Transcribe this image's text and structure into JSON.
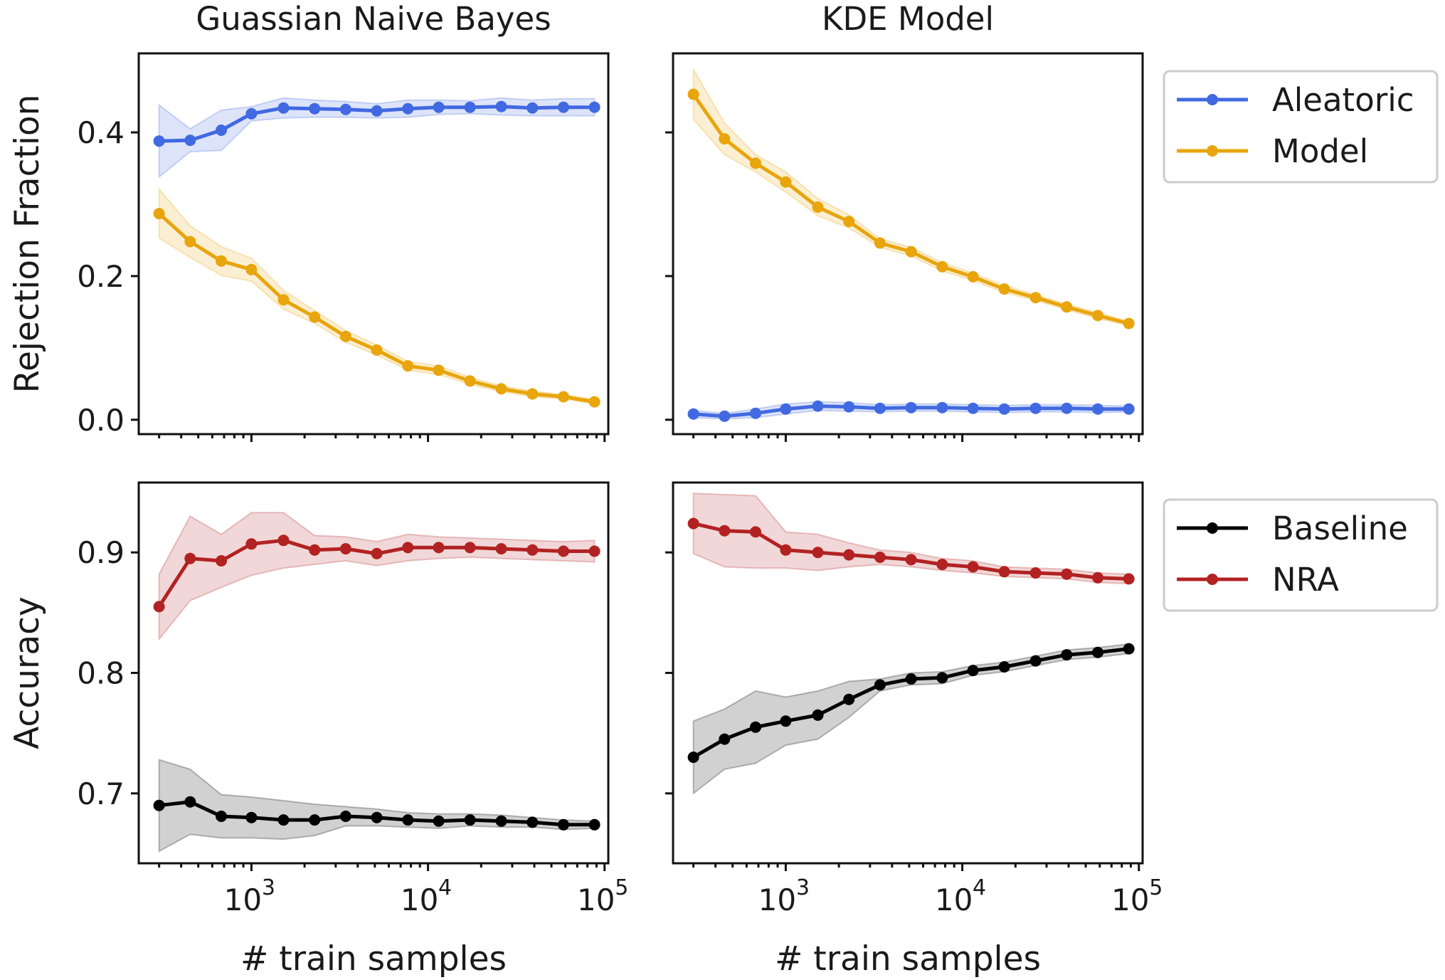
{
  "chart_data": [
    {
      "type": "line",
      "panel": "top-left",
      "title": "Guassian Naive Bayes",
      "xlabel": "",
      "ylabel": "Rejection Fraction",
      "xscale": "log",
      "xlim": [
        230,
        105000
      ],
      "ylim": [
        -0.02,
        0.51
      ],
      "yticks": [
        0.0,
        0.2,
        0.4
      ],
      "ytick_labels": [
        "0.0",
        "0.2",
        "0.4"
      ],
      "x": [
        300,
        450,
        675,
        1000,
        1520,
        2280,
        3420,
        5130,
        7690,
        11500,
        17300,
        26000,
        39000,
        58500,
        87700
      ],
      "series": [
        {
          "name": "Aleatoric",
          "color": "#4169e1",
          "values": [
            0.388,
            0.389,
            0.403,
            0.426,
            0.434,
            0.433,
            0.432,
            0.43,
            0.433,
            0.435,
            0.435,
            0.436,
            0.434,
            0.435,
            0.435
          ],
          "band": [
            0.05,
            0.016,
            0.028,
            0.01,
            0.014,
            0.012,
            0.011,
            0.01,
            0.012,
            0.01,
            0.009,
            0.012,
            0.011,
            0.012,
            0.012
          ]
        },
        {
          "name": "Model",
          "color": "#e8a50c",
          "values": [
            0.287,
            0.248,
            0.221,
            0.209,
            0.167,
            0.143,
            0.116,
            0.097,
            0.075,
            0.069,
            0.054,
            0.043,
            0.036,
            0.032,
            0.025
          ],
          "band": [
            0.034,
            0.022,
            0.02,
            0.016,
            0.013,
            0.009,
            0.008,
            0.007,
            0.006,
            0.006,
            0.005,
            0.004,
            0.004,
            0.003,
            0.003
          ]
        }
      ]
    },
    {
      "type": "line",
      "panel": "top-right",
      "title": "KDE Model",
      "xlabel": "",
      "ylabel": "",
      "xscale": "log",
      "xlim": [
        230,
        105000
      ],
      "ylim": [
        -0.02,
        0.51
      ],
      "yticks": [
        0.0,
        0.2,
        0.4
      ],
      "x": [
        300,
        450,
        675,
        1000,
        1520,
        2280,
        3420,
        5130,
        7690,
        11500,
        17300,
        26000,
        39000,
        58500,
        87700
      ],
      "series": [
        {
          "name": "Aleatoric",
          "color": "#4169e1",
          "values": [
            0.008,
            0.005,
            0.009,
            0.015,
            0.019,
            0.018,
            0.016,
            0.017,
            0.017,
            0.016,
            0.015,
            0.016,
            0.016,
            0.015,
            0.015
          ],
          "band": [
            0.005,
            0.004,
            0.006,
            0.007,
            0.006,
            0.006,
            0.005,
            0.005,
            0.005,
            0.005,
            0.005,
            0.005,
            0.005,
            0.005,
            0.004
          ]
        },
        {
          "name": "Model",
          "color": "#e8a50c",
          "values": [
            0.453,
            0.391,
            0.357,
            0.331,
            0.296,
            0.276,
            0.246,
            0.234,
            0.213,
            0.199,
            0.182,
            0.17,
            0.157,
            0.145,
            0.134
          ],
          "band": [
            0.035,
            0.022,
            0.012,
            0.014,
            0.012,
            0.009,
            0.006,
            0.006,
            0.006,
            0.005,
            0.005,
            0.004,
            0.004,
            0.004,
            0.003
          ]
        }
      ]
    },
    {
      "type": "line",
      "panel": "bottom-left",
      "title": "",
      "xlabel": "# train samples",
      "ylabel": "Accuracy",
      "xscale": "log",
      "xlim": [
        230,
        105000
      ],
      "ylim": [
        0.642,
        0.958
      ],
      "yticks": [
        0.7,
        0.8,
        0.9
      ],
      "ytick_labels": [
        "0.7",
        "0.8",
        "0.9"
      ],
      "xticks": [
        1000,
        10000,
        100000
      ],
      "xtick_labels": [
        "10",
        "10",
        "10"
      ],
      "xtick_exponents": [
        "3",
        "4",
        "5"
      ],
      "x": [
        300,
        450,
        675,
        1000,
        1520,
        2280,
        3420,
        5130,
        7690,
        11500,
        17300,
        26000,
        39000,
        58500,
        87700
      ],
      "series": [
        {
          "name": "Baseline",
          "color": "#000000",
          "values": [
            0.69,
            0.693,
            0.681,
            0.68,
            0.678,
            0.678,
            0.681,
            0.68,
            0.678,
            0.677,
            0.678,
            0.677,
            0.676,
            0.674,
            0.674
          ],
          "band": [
            0.038,
            0.027,
            0.018,
            0.017,
            0.016,
            0.013,
            0.008,
            0.007,
            0.006,
            0.006,
            0.005,
            0.005,
            0.004,
            0.004,
            0.003
          ]
        },
        {
          "name": "NRA",
          "color": "#b22222",
          "values": [
            0.855,
            0.895,
            0.893,
            0.907,
            0.91,
            0.902,
            0.903,
            0.899,
            0.904,
            0.904,
            0.904,
            0.903,
            0.902,
            0.901,
            0.901
          ],
          "band": [
            0.027,
            0.035,
            0.022,
            0.026,
            0.023,
            0.012,
            0.01,
            0.01,
            0.011,
            0.009,
            0.008,
            0.008,
            0.008,
            0.008,
            0.009
          ]
        }
      ]
    },
    {
      "type": "line",
      "panel": "bottom-right",
      "title": "",
      "xlabel": "# train samples",
      "ylabel": "",
      "xscale": "log",
      "xlim": [
        230,
        105000
      ],
      "ylim": [
        0.642,
        0.958
      ],
      "yticks": [
        0.7,
        0.8,
        0.9
      ],
      "xticks": [
        1000,
        10000,
        100000
      ],
      "xtick_labels": [
        "10",
        "10",
        "10"
      ],
      "xtick_exponents": [
        "3",
        "4",
        "5"
      ],
      "x": [
        300,
        450,
        675,
        1000,
        1520,
        2280,
        3420,
        5130,
        7690,
        11500,
        17300,
        26000,
        39000,
        58500,
        87700
      ],
      "series": [
        {
          "name": "Baseline",
          "color": "#000000",
          "values": [
            0.73,
            0.745,
            0.755,
            0.76,
            0.765,
            0.778,
            0.79,
            0.795,
            0.796,
            0.802,
            0.805,
            0.81,
            0.815,
            0.817,
            0.82
          ],
          "band": [
            0.03,
            0.025,
            0.03,
            0.02,
            0.02,
            0.015,
            0.005,
            0.005,
            0.005,
            0.004,
            0.004,
            0.004,
            0.004,
            0.004,
            0.004
          ]
        },
        {
          "name": "NRA",
          "color": "#b22222",
          "values": [
            0.924,
            0.918,
            0.917,
            0.902,
            0.9,
            0.898,
            0.896,
            0.894,
            0.89,
            0.888,
            0.884,
            0.883,
            0.882,
            0.879,
            0.878
          ],
          "band": [
            0.025,
            0.03,
            0.03,
            0.015,
            0.015,
            0.01,
            0.006,
            0.006,
            0.005,
            0.005,
            0.004,
            0.004,
            0.004,
            0.004,
            0.004
          ]
        }
      ]
    }
  ],
  "legends": [
    {
      "location": "right of top row",
      "entries": [
        {
          "label": "Aleatoric",
          "color": "#4169e1"
        },
        {
          "label": "Model",
          "color": "#e8a50c"
        }
      ]
    },
    {
      "location": "right of bottom row",
      "entries": [
        {
          "label": "Baseline",
          "color": "#000000"
        },
        {
          "label": "NRA",
          "color": "#b22222"
        }
      ]
    }
  ]
}
